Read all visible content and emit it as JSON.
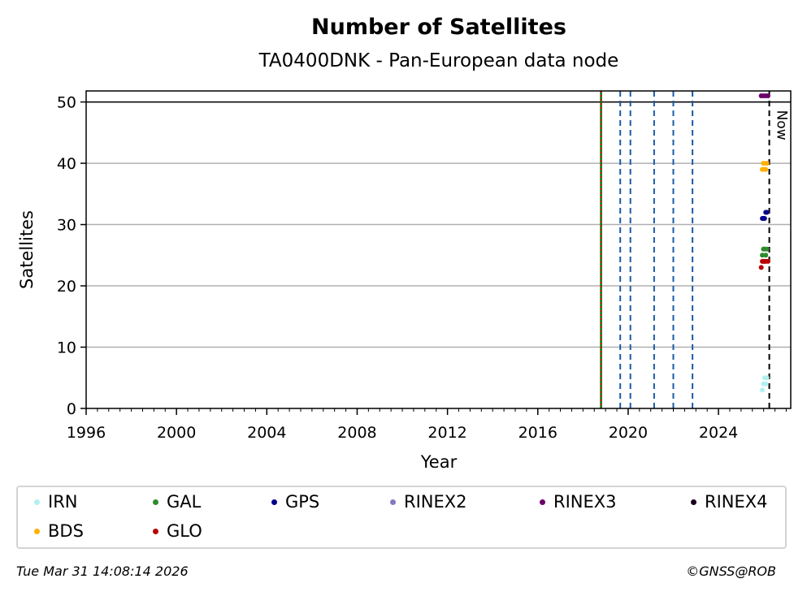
{
  "chart_data": {
    "type": "scatter",
    "title": "Number of Satellites",
    "subtitle": "TA0400DNK - Pan-European data node",
    "xlabel": "Year",
    "ylabel": "Satellites",
    "xlim": [
      1996,
      2027.2
    ],
    "ylim": [
      0,
      51.8
    ],
    "x_ticks": [
      1996,
      2000,
      2004,
      2008,
      2012,
      2016,
      2020,
      2024
    ],
    "x_tick_labels": [
      "1996",
      "2000",
      "2004",
      "2008",
      "2012",
      "2016",
      "2020",
      "2024"
    ],
    "y_ticks": [
      0,
      10,
      20,
      30,
      40,
      50
    ],
    "y_tick_labels": [
      "0",
      "10",
      "20",
      "30",
      "40",
      "50"
    ],
    "grid": "y",
    "reference_line": 50,
    "vlines": [
      {
        "x": 2018.8,
        "style": "solid",
        "color": "#007700"
      },
      {
        "x": 2018.8,
        "style": "dotted",
        "color": "#cc0000"
      },
      {
        "x": 2019.65,
        "style": "dashed",
        "color": "#1a5aa8"
      },
      {
        "x": 2020.1,
        "style": "dashed",
        "color": "#1a5aa8"
      },
      {
        "x": 2021.15,
        "style": "dashed",
        "color": "#1a5aa8"
      },
      {
        "x": 2022.0,
        "style": "dashed",
        "color": "#1a5aa8"
      },
      {
        "x": 2022.85,
        "style": "dashed",
        "color": "#1a5aa8"
      }
    ],
    "now": {
      "x": 2026.25,
      "label": "Now"
    },
    "series": [
      {
        "name": "IRN",
        "color": "#b2f0f0",
        "points": [
          [
            2026.05,
            3
          ],
          [
            2026.1,
            4
          ],
          [
            2026.15,
            5
          ],
          [
            2026.2,
            4
          ],
          [
            2026.25,
            5
          ]
        ]
      },
      {
        "name": "GAL",
        "color": "#2e8b2e",
        "points": [
          [
            2026.05,
            25
          ],
          [
            2026.1,
            26
          ],
          [
            2026.15,
            26
          ],
          [
            2026.2,
            25
          ],
          [
            2026.25,
            26
          ]
        ]
      },
      {
        "name": "GPS",
        "color": "#00008b",
        "points": [
          [
            2026.05,
            31
          ],
          [
            2026.1,
            31
          ],
          [
            2026.15,
            31
          ],
          [
            2026.2,
            32
          ],
          [
            2026.25,
            32
          ]
        ]
      },
      {
        "name": "RINEX2",
        "color": "#8878c0",
        "points": []
      },
      {
        "name": "RINEX3",
        "color": "#6b006b",
        "points": [
          [
            2026.0,
            51
          ],
          [
            2026.1,
            51
          ],
          [
            2026.2,
            51
          ],
          [
            2026.3,
            51
          ]
        ]
      },
      {
        "name": "RINEX4",
        "color": "#1a0020",
        "points": []
      },
      {
        "name": "BDS",
        "color": "#ffb000",
        "points": [
          [
            2026.05,
            39
          ],
          [
            2026.1,
            40
          ],
          [
            2026.15,
            39
          ],
          [
            2026.2,
            39
          ],
          [
            2026.25,
            40
          ]
        ]
      },
      {
        "name": "GLO",
        "color": "#b80000",
        "points": [
          [
            2026.0,
            23
          ],
          [
            2026.05,
            24
          ],
          [
            2026.1,
            24
          ],
          [
            2026.15,
            24
          ],
          [
            2026.2,
            24
          ],
          [
            2026.3,
            24
          ]
        ]
      }
    ]
  },
  "footer": {
    "timestamp": "Tue Mar 31 14:08:14 2026",
    "copyright": "©GNSS@ROB"
  }
}
